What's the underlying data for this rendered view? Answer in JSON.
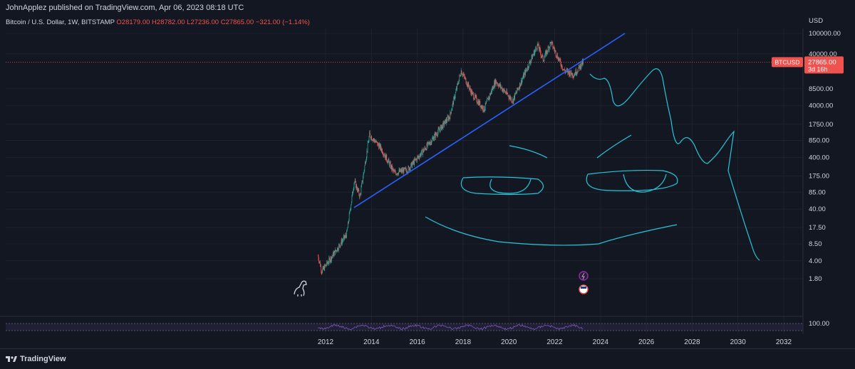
{
  "header": {
    "publisher": "JohnApplez published on TradingView.com, Apr 06, 2023 08:18 UTC",
    "symbol_desc": "Bitcoin / U.S. Dollar, 1W, BITSTAMP",
    "open": "O28179.00",
    "high": "H28782.00",
    "low": "L27236.00",
    "close": "C27865.00",
    "change": "−321.00 (−1.14%)"
  },
  "price_axis": {
    "currency": "USD",
    "ticks": [
      "100000.00",
      "40000.00",
      "8500.00",
      "4000.00",
      "1750.00",
      "850.00",
      "400.00",
      "175.00",
      "85.00",
      "40.00",
      "17.50",
      "8.50",
      "4.00",
      "1.80"
    ]
  },
  "price_label": {
    "symbol": "BTCUSD",
    "price": "27865.00",
    "countdown": "3d 16h"
  },
  "rsi_axis": {
    "tick": "100.00"
  },
  "time_axis": {
    "ticks": [
      "2012",
      "2014",
      "2016",
      "2018",
      "2020",
      "2022",
      "2024",
      "2026",
      "2028",
      "2030",
      "2032"
    ]
  },
  "footer": {
    "brand": "TradingView"
  },
  "colors": {
    "background": "#131722",
    "up": "#26a69a",
    "down": "#ef5350",
    "trendline": "#2962ff",
    "drawing": "#26c6da",
    "rsi": "#7e57c2",
    "grid": "#1e222d"
  },
  "chart_data": {
    "type": "candlestick",
    "scale": "log",
    "ylim": [
      1.8,
      100000
    ],
    "x_range": [
      "2012",
      "2032"
    ],
    "grid": true,
    "last_price": 27865.0,
    "series": [
      {
        "x": "2011-09",
        "y": 5
      },
      {
        "x": "2011-11",
        "y": 2.5
      },
      {
        "x": "2012-06",
        "y": 6
      },
      {
        "x": "2012-12",
        "y": 13
      },
      {
        "x": "2013-04",
        "y": 140
      },
      {
        "x": "2013-07",
        "y": 70
      },
      {
        "x": "2013-12",
        "y": 1100
      },
      {
        "x": "2014-06",
        "y": 600
      },
      {
        "x": "2015-01",
        "y": 200
      },
      {
        "x": "2015-08",
        "y": 230
      },
      {
        "x": "2016-06",
        "y": 650
      },
      {
        "x": "2017-06",
        "y": 2500
      },
      {
        "x": "2017-12",
        "y": 19000
      },
      {
        "x": "2018-06",
        "y": 6500
      },
      {
        "x": "2018-12",
        "y": 3400
      },
      {
        "x": "2019-06",
        "y": 12000
      },
      {
        "x": "2020-03",
        "y": 5000
      },
      {
        "x": "2020-12",
        "y": 28000
      },
      {
        "x": "2021-04",
        "y": 60000
      },
      {
        "x": "2021-07",
        "y": 31000
      },
      {
        "x": "2021-11",
        "y": 67000
      },
      {
        "x": "2022-06",
        "y": 19000
      },
      {
        "x": "2022-11",
        "y": 16000
      },
      {
        "x": "2023-04",
        "y": 27865
      }
    ]
  }
}
